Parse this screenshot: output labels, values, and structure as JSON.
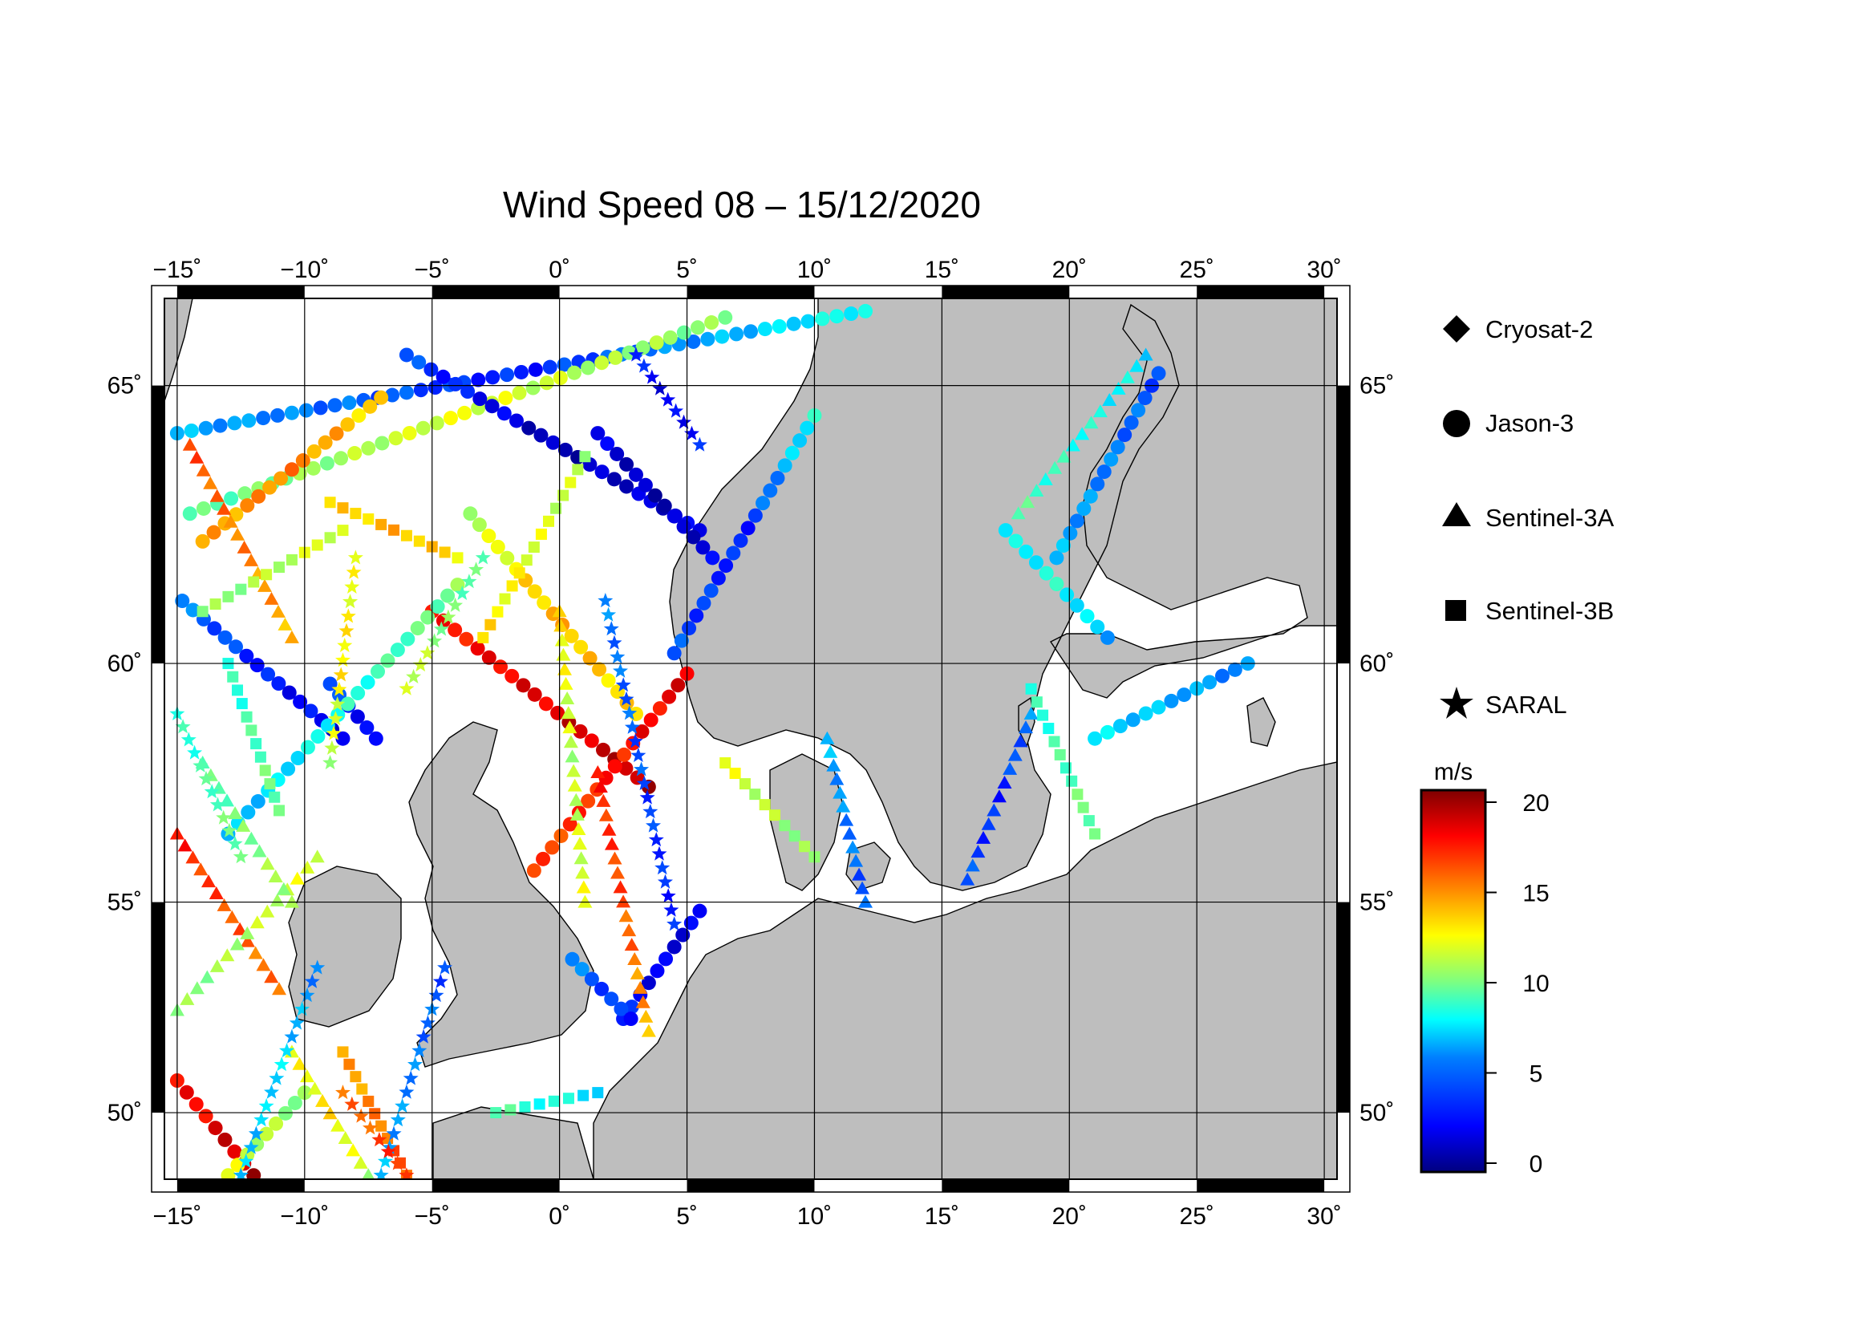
{
  "title": "Wind Speed 08 – 15/12/2020",
  "map": {
    "lon_range": [
      -15.5,
      30.5
    ],
    "lat_range": [
      48.3,
      66.4
    ],
    "lon_ticks": [
      -15,
      -10,
      -5,
      0,
      5,
      10,
      15,
      20,
      25,
      30
    ],
    "lat_ticks": [
      50,
      55,
      60,
      65
    ],
    "lon_tick_labels": [
      "−15˚",
      "−10˚",
      "−5˚",
      "0˚",
      "5˚",
      "10˚",
      "15˚",
      "20˚",
      "25˚",
      "30˚"
    ],
    "lat_tick_labels": [
      "50˚",
      "55˚",
      "60˚",
      "65˚"
    ],
    "land_color": "#bebebe",
    "sea_color": "#ffffff",
    "grid": true
  },
  "legend": {
    "entries": [
      {
        "symbol": "diamond",
        "label": "Cryosat-2"
      },
      {
        "symbol": "circle",
        "label": "Jason-3"
      },
      {
        "symbol": "triangle",
        "label": "Sentinel-3A"
      },
      {
        "symbol": "square",
        "label": "Sentinel-3B"
      },
      {
        "symbol": "star",
        "label": "SARAL"
      }
    ]
  },
  "colorbar": {
    "unit": "m/s",
    "min": 0,
    "max": 20,
    "ticks": [
      0,
      5,
      10,
      15,
      20
    ],
    "tick_labels": [
      "0",
      "5",
      "10",
      "15",
      "20"
    ],
    "colormap": [
      "#00007f",
      "#0000ff",
      "#007fff",
      "#00ffff",
      "#7fff7f",
      "#ffff00",
      "#ff7f00",
      "#ff0000",
      "#7f0000"
    ]
  },
  "tracks": [
    {
      "sat": "circle",
      "from": [
        -15.0,
        64.2
      ],
      "to": [
        12.0,
        66.2
      ],
      "ws": [
        6,
        3,
        8
      ]
    },
    {
      "sat": "circle",
      "from": [
        -14.5,
        62.8
      ],
      "to": [
        6.5,
        66.1
      ],
      "ws": [
        9,
        12,
        10
      ]
    },
    {
      "sat": "circle",
      "from": [
        -14.8,
        61.2
      ],
      "to": [
        -8.5,
        58.5
      ],
      "ws": [
        5,
        3,
        2
      ]
    },
    {
      "sat": "circle",
      "from": [
        -9.0,
        59.6
      ],
      "to": [
        -7.2,
        58.5
      ],
      "ws": [
        4,
        3,
        2
      ]
    },
    {
      "sat": "circle",
      "from": [
        -5.0,
        61.0
      ],
      "to": [
        3.5,
        57.5
      ],
      "ws": [
        17,
        18,
        19
      ]
    },
    {
      "sat": "circle",
      "from": [
        -1.0,
        55.7
      ],
      "to": [
        5.0,
        59.8
      ],
      "ws": [
        16,
        17,
        18
      ]
    },
    {
      "sat": "circle",
      "from": [
        3.0,
        59.0
      ],
      "to": [
        -3.5,
        62.8
      ],
      "ws": [
        13,
        14,
        11
      ]
    },
    {
      "sat": "circle",
      "from": [
        4.5,
        60.2
      ],
      "to": [
        10.0,
        64.5
      ],
      "ws": [
        4,
        3,
        8
      ]
    },
    {
      "sat": "circle",
      "from": [
        5.5,
        62.5
      ],
      "to": [
        -6.0,
        65.5
      ],
      "ws": [
        2,
        1,
        4
      ]
    },
    {
      "sat": "circle",
      "from": [
        1.5,
        64.2
      ],
      "to": [
        6.0,
        62.0
      ],
      "ws": [
        2,
        1,
        2
      ]
    },
    {
      "sat": "circle",
      "from": [
        -13.0,
        56.5
      ],
      "to": [
        -4.0,
        61.5
      ],
      "ws": [
        6,
        8,
        10
      ]
    },
    {
      "sat": "circle",
      "from": [
        -14.0,
        62.3
      ],
      "to": [
        -7.0,
        64.8
      ],
      "ws": [
        14,
        15,
        13
      ]
    },
    {
      "sat": "circle",
      "from": [
        2.5,
        52.3
      ],
      "to": [
        5.5,
        54.8
      ],
      "ws": [
        3,
        2,
        2
      ]
    },
    {
      "sat": "circle",
      "from": [
        0.5,
        53.7
      ],
      "to": [
        2.8,
        52.3
      ],
      "ws": [
        5,
        4,
        3
      ]
    },
    {
      "sat": "circle",
      "from": [
        21.0,
        58.5
      ],
      "to": [
        27.0,
        60.0
      ],
      "ws": [
        7,
        6,
        5
      ]
    },
    {
      "sat": "circle",
      "from": [
        17.5,
        62.5
      ],
      "to": [
        21.5,
        60.5
      ],
      "ws": [
        7,
        8,
        6
      ]
    },
    {
      "sat": "circle",
      "from": [
        19.5,
        62.0
      ],
      "to": [
        23.5,
        65.2
      ],
      "ws": [
        6,
        5,
        4
      ]
    },
    {
      "sat": "circle",
      "from": [
        -15.0,
        50.8
      ],
      "to": [
        -12.0,
        48.4
      ],
      "ws": [
        17,
        18,
        19
      ]
    },
    {
      "sat": "circle",
      "from": [
        -13.0,
        48.4
      ],
      "to": [
        -10.0,
        50.5
      ],
      "ws": [
        12,
        11,
        10
      ]
    },
    {
      "sat": "triangle",
      "from": [
        -15.0,
        56.5
      ],
      "to": [
        -11.0,
        53.0
      ],
      "ws": [
        17,
        16,
        15
      ]
    },
    {
      "sat": "triangle",
      "from": [
        -14.5,
        64.0
      ],
      "to": [
        -10.5,
        60.5
      ],
      "ws": [
        16,
        15,
        14
      ]
    },
    {
      "sat": "triangle",
      "from": [
        -15.0,
        52.5
      ],
      "to": [
        -9.5,
        56.0
      ],
      "ws": [
        10,
        11,
        12
      ]
    },
    {
      "sat": "triangle",
      "from": [
        1.0,
        55.0
      ],
      "to": [
        0.0,
        61.0
      ],
      "ws": [
        12,
        11,
        13
      ]
    },
    {
      "sat": "triangle",
      "from": [
        1.5,
        57.8
      ],
      "to": [
        3.5,
        52.0
      ],
      "ws": [
        17,
        16,
        14
      ]
    },
    {
      "sat": "triangle",
      "from": [
        10.5,
        58.5
      ],
      "to": [
        12.0,
        55.0
      ],
      "ws": [
        6,
        5,
        4
      ]
    },
    {
      "sat": "triangle",
      "from": [
        16.0,
        55.5
      ],
      "to": [
        18.5,
        59.0
      ],
      "ws": [
        4,
        3,
        5
      ]
    },
    {
      "sat": "triangle",
      "from": [
        18.0,
        62.8
      ],
      "to": [
        23.0,
        65.5
      ],
      "ws": [
        9,
        8,
        7
      ]
    },
    {
      "sat": "triangle",
      "from": [
        -10.5,
        51.5
      ],
      "to": [
        -7.5,
        48.4
      ],
      "ws": [
        12,
        13,
        11
      ]
    },
    {
      "sat": "triangle",
      "from": [
        -14.0,
        58.0
      ],
      "to": [
        -10.5,
        55.0
      ],
      "ws": [
        9,
        10,
        11
      ]
    },
    {
      "sat": "square",
      "from": [
        -14.0,
        61.0
      ],
      "to": [
        -8.5,
        62.5
      ],
      "ws": [
        10,
        11,
        12
      ]
    },
    {
      "sat": "square",
      "from": [
        -3.0,
        60.5
      ],
      "to": [
        1.0,
        63.8
      ],
      "ws": [
        13,
        12,
        11
      ]
    },
    {
      "sat": "square",
      "from": [
        -13.0,
        60.0
      ],
      "to": [
        -11.0,
        57.0
      ],
      "ws": [
        8,
        9,
        10
      ]
    },
    {
      "sat": "square",
      "from": [
        6.5,
        58.0
      ],
      "to": [
        10.0,
        56.0
      ],
      "ws": [
        12,
        11,
        10
      ]
    },
    {
      "sat": "square",
      "from": [
        18.5,
        59.5
      ],
      "to": [
        21.0,
        56.5
      ],
      "ws": [
        8,
        9,
        10
      ]
    },
    {
      "sat": "square",
      "from": [
        -8.5,
        51.5
      ],
      "to": [
        -6.0,
        48.4
      ],
      "ws": [
        14,
        15,
        16
      ]
    },
    {
      "sat": "square",
      "from": [
        -2.5,
        50.0
      ],
      "to": [
        1.5,
        50.5
      ],
      "ws": [
        9,
        8,
        7
      ]
    },
    {
      "sat": "square",
      "from": [
        -9.0,
        63.0
      ],
      "to": [
        -4.0,
        62.0
      ],
      "ws": [
        13,
        14,
        13
      ]
    },
    {
      "sat": "star",
      "from": [
        -15.0,
        59.0
      ],
      "to": [
        -12.5,
        56.0
      ],
      "ws": [
        8,
        9,
        10
      ]
    },
    {
      "sat": "star",
      "from": [
        -8.0,
        62.0
      ],
      "to": [
        -9.0,
        58.0
      ],
      "ws": [
        12,
        13,
        11
      ]
    },
    {
      "sat": "star",
      "from": [
        1.8,
        61.2
      ],
      "to": [
        4.5,
        54.5
      ],
      "ws": [
        5,
        4,
        3
      ]
    },
    {
      "sat": "star",
      "from": [
        -12.5,
        48.4
      ],
      "to": [
        -9.5,
        53.5
      ],
      "ws": [
        6,
        7,
        5
      ]
    },
    {
      "sat": "star",
      "from": [
        -7.0,
        48.4
      ],
      "to": [
        -4.5,
        53.5
      ],
      "ws": [
        6,
        5,
        4
      ]
    },
    {
      "sat": "star",
      "from": [
        -3.0,
        62.0
      ],
      "to": [
        -6.0,
        59.5
      ],
      "ws": [
        9,
        10,
        12
      ]
    },
    {
      "sat": "star",
      "from": [
        3.0,
        65.5
      ],
      "to": [
        5.5,
        64.0
      ],
      "ws": [
        3,
        2,
        3
      ]
    },
    {
      "sat": "star",
      "from": [
        -8.5,
        50.5
      ],
      "to": [
        -6.0,
        48.4
      ],
      "ws": [
        15,
        16,
        17
      ]
    }
  ]
}
